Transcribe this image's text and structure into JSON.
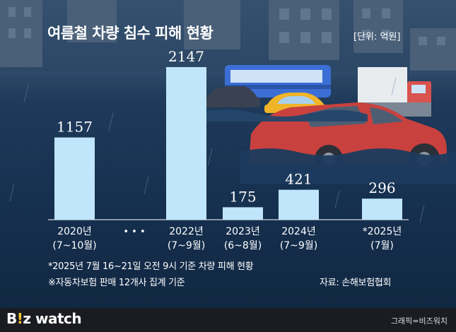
{
  "title": "여름철 차량 침수 피해 현황",
  "unit": "[단위: 억원]",
  "chart_data": {
    "type": "bar",
    "title": "여름철 차량 침수 피해 현황",
    "unit": "[단위: 억원]",
    "categories": [
      {
        "label": "2020년",
        "sub": "(7~10월)"
      },
      {
        "label": "2022년",
        "sub": "(7~9월)"
      },
      {
        "label": "2023년",
        "sub": "(6~8월)"
      },
      {
        "label": "2024년",
        "sub": "(7~9월)"
      },
      {
        "label": "*2025년",
        "sub": "(7월)"
      }
    ],
    "values": [
      1157,
      2147,
      175,
      421,
      296
    ],
    "gap_marker": "• • •",
    "ylim": [
      0,
      2147
    ],
    "bar_color": "#bfe6fa",
    "grid": false
  },
  "notes": [
    "*2025년 7월 16~21일 오전 9시 기준 차량 피해 현황",
    "※자동차보험 판매 12개사 집계 기준"
  ],
  "source": "자료: 손해보험협회",
  "footer": {
    "logo_main": "B",
    "logo_dot": "!",
    "logo_rest": "z watch",
    "credit": "그래픽=비즈워치"
  }
}
